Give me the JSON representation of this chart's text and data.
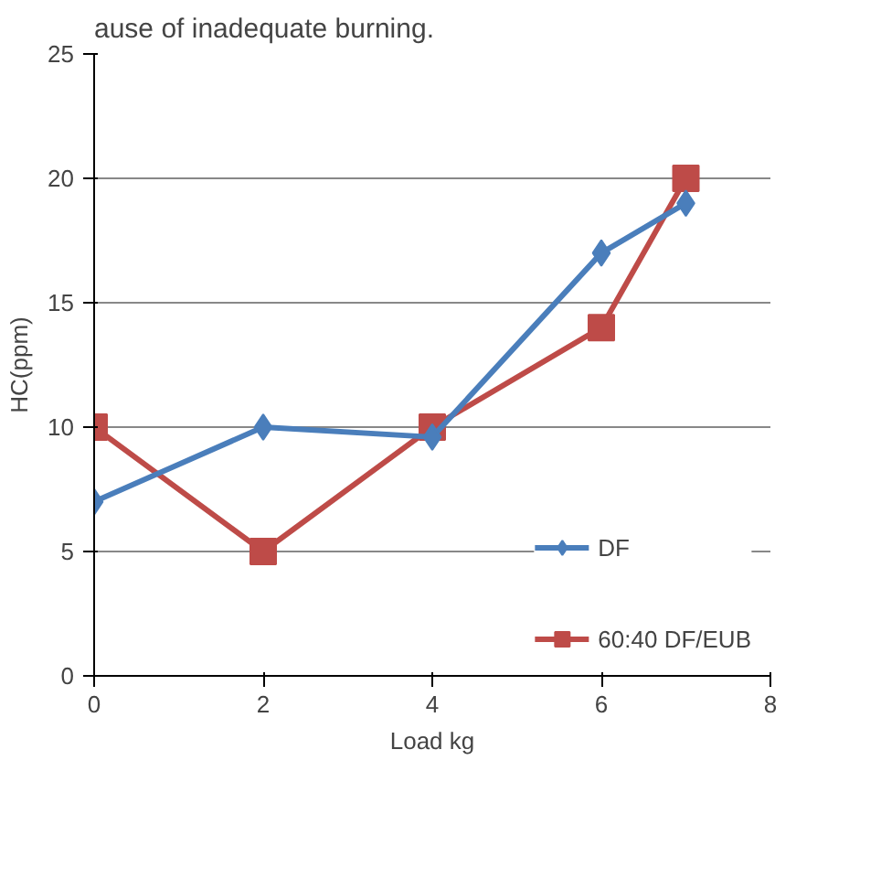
{
  "chart_data": {
    "type": "line",
    "ylabel": "HC(ppm)",
    "xlabel": "Load kg",
    "annotations": [
      "ause of inadequate burning."
    ],
    "x": [
      0,
      2,
      4,
      6,
      7
    ],
    "series": [
      {
        "name": "DF",
        "color": "#4a7ebb",
        "marker": "diamond",
        "values": [
          7,
          10,
          9.6,
          17,
          19
        ]
      },
      {
        "name": "60:40 DF/EUB",
        "color": "#be4b48",
        "marker": "square",
        "values": [
          10,
          5,
          10,
          14,
          20
        ]
      }
    ],
    "xlim": [
      0,
      8
    ],
    "xticks": [
      0,
      2,
      4,
      6,
      8
    ],
    "ylim": [
      0,
      25
    ],
    "yticks": [
      0,
      5,
      10,
      15,
      20,
      25
    ],
    "grid": "y",
    "legend": "bottom right"
  }
}
